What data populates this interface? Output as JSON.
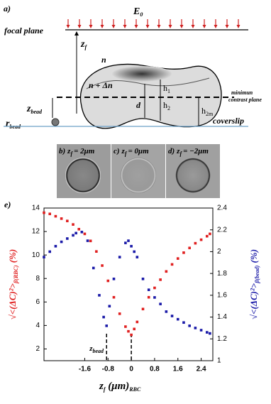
{
  "figure": {
    "panel_a": {
      "label": "a)",
      "field": {
        "main": "E",
        "sub": "0"
      },
      "focal_plane": "focal plane",
      "zf": {
        "main": "z",
        "sub": "f"
      },
      "n": "n",
      "n_dn": "n + Δn",
      "h1": {
        "main": "h",
        "sub": "1"
      },
      "h2": {
        "main": "h",
        "sub": "2"
      },
      "h2m": {
        "main": "h",
        "sub": "2m"
      },
      "d": "d",
      "zbead": {
        "main": "z",
        "sub": "bead"
      },
      "rbead": {
        "main": "r",
        "sub": "bead"
      },
      "min_plane": [
        "minimun",
        "contrast plane"
      ],
      "coverslip": "coverslip"
    },
    "panels_bcd": [
      {
        "label": "b)",
        "z": {
          "main": "z",
          "sub": "f"
        },
        "value": "= 2μm"
      },
      {
        "label": "c)",
        "z": {
          "main": "z",
          "sub": "f"
        },
        "value": "= 0μm"
      },
      {
        "label": "d)",
        "z": {
          "main": "z",
          "sub": "f"
        },
        "value": "= −2μm"
      }
    ]
  },
  "chart_data": {
    "type": "scatter",
    "label": "e)",
    "x_label": {
      "main": "z",
      "sub": "f",
      "unit": " (μm)",
      "sub2": "RBC"
    },
    "y_label": {
      "main": "√<(ΔC)²>",
      "sub": "β(RBC)",
      "unit": " (%)"
    },
    "y2_label": {
      "main": "√<(ΔC)²>",
      "sub": "β(bead)",
      "unit": " (%)"
    },
    "annotation": {
      "main": "z",
      "sub": "bead"
    },
    "vlines": [
      -0.85,
      0
    ],
    "xlim": [
      -3,
      2.8
    ],
    "xticks": [
      -1.6,
      -0.8,
      0,
      0.8,
      1.6,
      2.4
    ],
    "ylim": [
      1,
      14
    ],
    "yticks": [
      2,
      4,
      6,
      8,
      10,
      12,
      14
    ],
    "y2lim": [
      1,
      2.4
    ],
    "y2ticks": [
      1,
      1.2,
      1.4,
      1.6,
      1.8,
      2,
      2.2,
      2.4
    ],
    "series": [
      {
        "color": "#e02020",
        "x": [
          -3,
          -2.8,
          -2.6,
          -2.4,
          -2.2,
          -2,
          -1.8,
          -1.6,
          -1.4,
          -1.2,
          -1,
          -0.8,
          -0.6,
          -0.4,
          -0.2,
          -0.1,
          0,
          0.1,
          0.2,
          0.4,
          0.6,
          0.8,
          1,
          1.2,
          1.4,
          1.6,
          1.8,
          2,
          2.2,
          2.4,
          2.6,
          2.7
        ],
        "values": [
          13.6,
          13.5,
          13.3,
          13.1,
          12.9,
          12.6,
          12.2,
          11.8,
          11.2,
          10.3,
          9.1,
          7.8,
          6.4,
          5,
          3.9,
          3.5,
          3.2,
          3.7,
          4.3,
          5.4,
          6.4,
          7.2,
          7.9,
          8.6,
          9.2,
          9.7,
          10.2,
          10.6,
          11,
          11.3,
          11.6,
          11.8
        ]
      },
      {
        "color": "#1a1aa8",
        "axis": "y2",
        "x": [
          -3,
          -2.8,
          -2.6,
          -2.4,
          -2.2,
          -2,
          -1.9,
          -1.7,
          -1.5,
          -1.3,
          -1.1,
          -0.95,
          -0.85,
          -0.75,
          -0.6,
          -0.4,
          -0.2,
          -0.1,
          0,
          0.1,
          0.2,
          0.4,
          0.6,
          0.8,
          1,
          1.2,
          1.4,
          1.6,
          1.8,
          2,
          2.2,
          2.4,
          2.6,
          2.7
        ],
        "values": [
          1.95,
          2,
          2.05,
          2.09,
          2.12,
          2.15,
          2.17,
          2.18,
          2.1,
          1.85,
          1.6,
          1.4,
          1.32,
          1.5,
          1.75,
          1.95,
          2.08,
          2.1,
          2.05,
          2,
          1.95,
          1.75,
          1.65,
          1.58,
          1.52,
          1.45,
          1.41,
          1.38,
          1.35,
          1.32,
          1.3,
          1.28,
          1.26,
          1.25
        ]
      }
    ]
  }
}
